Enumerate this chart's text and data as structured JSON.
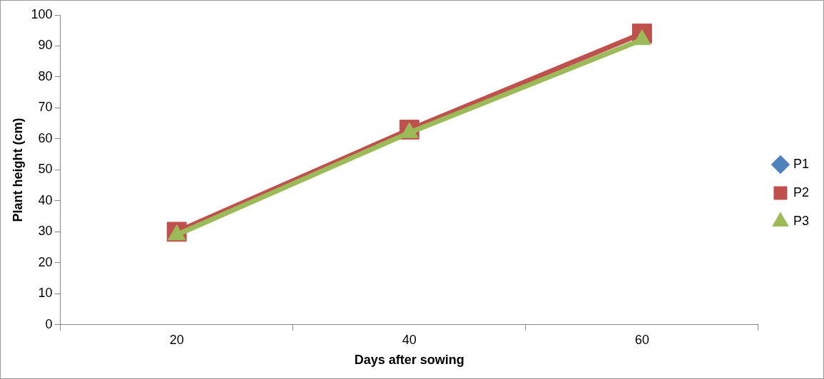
{
  "chart_data": {
    "type": "line",
    "xlabel": "Days after sowing",
    "ylabel": "Plant height (cm)",
    "categories": [
      "20",
      "40",
      "60"
    ],
    "series": [
      {
        "name": "P1",
        "color": "#4f81bd",
        "marker": "diamond",
        "values": [
          null,
          null,
          null
        ]
      },
      {
        "name": "P2",
        "color": "#c0504d",
        "marker": "square",
        "values": [
          30,
          63,
          94
        ]
      },
      {
        "name": "P3",
        "color": "#9bbb59",
        "marker": "triangle",
        "values": [
          29,
          62,
          92
        ]
      }
    ],
    "ylim": [
      0,
      100
    ],
    "yticks": [
      0,
      10,
      20,
      30,
      40,
      50,
      60,
      70,
      80,
      90,
      100
    ],
    "grid": false,
    "legend": "right"
  }
}
